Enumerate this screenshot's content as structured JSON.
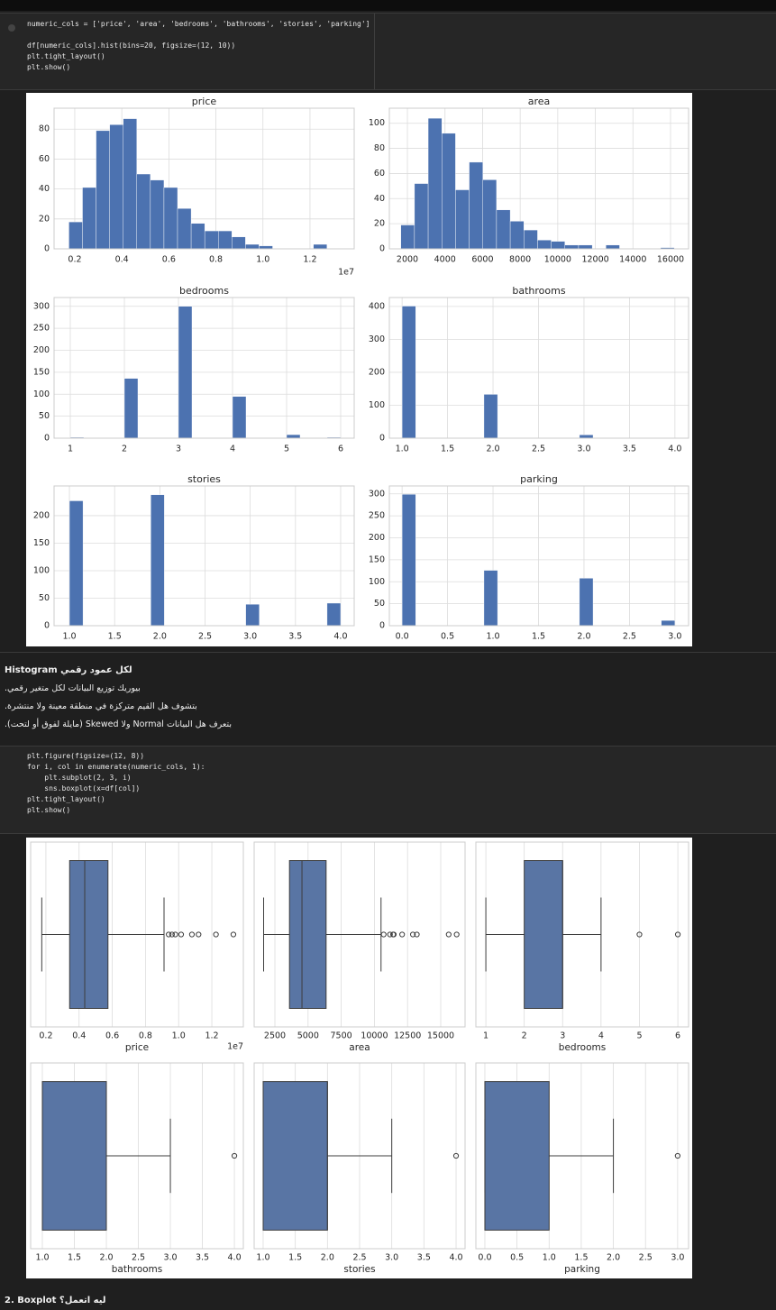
{
  "code_cells": [
    {
      "lines": [
        "numeric_cols = ['price', 'area', 'bedrooms', 'bathrooms', 'stories', 'parking']",
        "df[numeric_cols].hist(bins=20, figsize=(12, 10))",
        "plt.tight_layout()",
        "plt.show()"
      ]
    },
    {
      "lines": [
        "plt.figure(figsize=(12, 8))",
        "for i, col in enumerate(numeric_cols, 1):",
        "    plt.subplot(2, 3, i)",
        "    sns.boxplot(x=df[col])",
        "plt.tight_layout()",
        "plt.show()"
      ]
    }
  ],
  "markdown": {
    "lines": [
      "لكل عمود رقمي Histogram",
      "بيوريك توزيع البيانات لكل متغير رقمي.",
      "بتشوف هل القيم متركزة في منطقة معينة ولا منتشرة.",
      "بتعرف هل البيانات Normal ولا Skewed (مايلة لفوق أو لتحت)."
    ]
  },
  "next_heading": "2. Boxplot ليه اتعمل؟",
  "chart_data": [
    {
      "type": "histogram",
      "title": "price",
      "color": "#4c72b0",
      "grid": true,
      "x_offset_label": "1e7",
      "bins": [
        0.175,
        0.23275,
        0.2905,
        0.34825,
        0.406,
        0.46375,
        0.5215,
        0.57925,
        0.637,
        0.69475,
        0.7525,
        0.81025,
        0.868,
        0.92575,
        0.9835,
        1.04125,
        1.099,
        1.15675,
        1.2145,
        1.27225,
        1.33
      ],
      "values": [
        18,
        41,
        79,
        83,
        87,
        50,
        46,
        41,
        27,
        17,
        12,
        12,
        8,
        3,
        2,
        0,
        0,
        0,
        3,
        0
      ],
      "xlim": [
        0.112,
        1.388
      ],
      "xticks": [
        0.2,
        0.4,
        0.6,
        0.8,
        {
          "value": 1.0,
          "label": "1.0"
        },
        1.2
      ],
      "ylim": [
        0,
        94
      ],
      "yticks": [
        0,
        20,
        40,
        60,
        80
      ]
    },
    {
      "type": "histogram",
      "title": "area",
      "color": "#4c72b0",
      "grid": true,
      "bins": [
        1650,
        2377.5,
        3105,
        3832.5,
        4560,
        5287.5,
        6015,
        6742.5,
        7470,
        8197.5,
        8925,
        9652.5,
        10380,
        11107.5,
        11835,
        12562.5,
        13290,
        14017.5,
        14745,
        15472.5,
        16200
      ],
      "values": [
        19,
        52,
        104,
        92,
        47,
        69,
        55,
        31,
        22,
        15,
        7,
        6,
        3,
        3,
        0,
        3,
        0,
        0,
        0,
        1
      ],
      "xlim": [
        1040,
        16960
      ],
      "xticks": [
        2000,
        4000,
        6000,
        8000,
        10000,
        12000,
        14000,
        16000
      ],
      "ylim": [
        0,
        112
      ],
      "yticks": [
        0,
        20,
        40,
        60,
        80,
        100
      ]
    },
    {
      "type": "histogram",
      "title": "bedrooms",
      "color": "#4c72b0",
      "grid": true,
      "bins": [
        1,
        1.25,
        1.5,
        1.75,
        2,
        2.25,
        2.5,
        2.75,
        3,
        3.25,
        3.5,
        3.75,
        4,
        4.25,
        4.5,
        4.75,
        5,
        5.25,
        5.5,
        5.75,
        6
      ],
      "values": [
        2,
        0,
        0,
        0,
        136,
        0,
        0,
        0,
        300,
        0,
        0,
        0,
        95,
        0,
        0,
        0,
        8,
        0,
        0,
        2
      ],
      "xlim": [
        0.7,
        6.25
      ],
      "xticks": [
        1,
        2,
        3,
        4,
        5,
        6
      ],
      "ylim": [
        0,
        320
      ],
      "yticks": [
        0,
        50,
        100,
        150,
        200,
        250,
        300
      ]
    },
    {
      "type": "histogram",
      "title": "bathrooms",
      "color": "#4c72b0",
      "grid": true,
      "bins": [
        1,
        1.15,
        1.3,
        1.45,
        1.6,
        1.75,
        1.9,
        2.05,
        2.2,
        2.35,
        2.5,
        2.65,
        2.8,
        2.95,
        3.1,
        3.25,
        3.4,
        3.55,
        3.7,
        3.85,
        4
      ],
      "values": [
        401,
        0,
        0,
        0,
        0,
        0,
        133,
        0,
        0,
        0,
        0,
        0,
        0,
        10,
        0,
        0,
        0,
        0,
        0,
        1
      ],
      "xlim": [
        0.86,
        4.15
      ],
      "xticks": [
        {
          "value": 1,
          "label": "1.0"
        },
        1.5,
        {
          "value": 2,
          "label": "2.0"
        },
        2.5,
        {
          "value": 3,
          "label": "3.0"
        },
        3.5,
        {
          "value": 4,
          "label": "4.0"
        }
      ],
      "ylim": [
        0,
        427
      ],
      "yticks": [
        0,
        100,
        200,
        300,
        400
      ]
    },
    {
      "type": "histogram",
      "title": "stories",
      "color": "#4c72b0",
      "grid": true,
      "bins": [
        1,
        1.15,
        1.3,
        1.45,
        1.6,
        1.75,
        1.9,
        2.05,
        2.2,
        2.35,
        2.5,
        2.65,
        2.8,
        2.95,
        3.1,
        3.25,
        3.4,
        3.55,
        3.7,
        3.85,
        4
      ],
      "values": [
        227,
        0,
        0,
        0,
        0,
        0,
        238,
        0,
        0,
        0,
        0,
        0,
        0,
        39,
        0,
        0,
        0,
        0,
        0,
        41
      ],
      "xlim": [
        0.83,
        4.15
      ],
      "xticks": [
        {
          "value": 1,
          "label": "1.0"
        },
        1.5,
        {
          "value": 2,
          "label": "2.0"
        },
        2.5,
        {
          "value": 3,
          "label": "3.0"
        },
        3.5,
        {
          "value": 4,
          "label": "4.0"
        }
      ],
      "ylim": [
        0,
        254
      ],
      "yticks": [
        0,
        50,
        100,
        150,
        200
      ]
    },
    {
      "type": "histogram",
      "title": "parking",
      "color": "#4c72b0",
      "grid": true,
      "bins": [
        0,
        0.15,
        0.3,
        0.45,
        0.6,
        0.75,
        0.9,
        1.05,
        1.2,
        1.35,
        1.5,
        1.65,
        1.8,
        1.95,
        2.1,
        2.25,
        2.4,
        2.55,
        2.7,
        2.85,
        3
      ],
      "values": [
        299,
        0,
        0,
        0,
        0,
        0,
        126,
        0,
        0,
        0,
        0,
        0,
        0,
        108,
        0,
        0,
        0,
        0,
        0,
        12
      ],
      "xlim": [
        -0.14,
        3.15
      ],
      "xticks": [
        {
          "value": 0,
          "label": "0.0"
        },
        0.5,
        {
          "value": 1,
          "label": "1.0"
        },
        1.5,
        {
          "value": 2,
          "label": "2.0"
        },
        2.5,
        {
          "value": 3,
          "label": "3.0"
        }
      ],
      "ylim": [
        0,
        318
      ],
      "yticks": [
        0,
        50,
        100,
        150,
        200,
        250,
        300
      ]
    },
    {
      "type": "box",
      "xlabel": "price",
      "color": "#5975a4",
      "grid": true,
      "x_offset_label": "1e7",
      "whislo": 0.175,
      "q1": 0.343,
      "median": 0.434,
      "q3": 0.574,
      "whishi": 0.912,
      "fliers": [
        0.94,
        0.96,
        0.98,
        1.015,
        1.08,
        1.12,
        1.225,
        1.33
      ],
      "xlim": [
        0.108,
        1.39
      ],
      "xticks": [
        0.2,
        0.4,
        0.6,
        0.8,
        {
          "value": 1.0,
          "label": "1.0"
        },
        1.2
      ]
    },
    {
      "type": "box",
      "xlabel": "area",
      "color": "#5975a4",
      "grid": true,
      "whislo": 1650,
      "q1": 3600,
      "median": 4540,
      "q3": 6360,
      "whishi": 10500,
      "fliers": [
        10700,
        11175,
        11410,
        11460,
        12090,
        12900,
        13200,
        15600,
        16200
      ],
      "xlim": [
        937,
        16834
      ],
      "xticks": [
        2500,
        5000,
        7500,
        10000,
        12500,
        15000
      ]
    },
    {
      "type": "box",
      "xlabel": "bedrooms",
      "color": "#5975a4",
      "grid": true,
      "whislo": 1,
      "q1": 2,
      "median": 3,
      "q3": 3,
      "whishi": 4,
      "fliers": [
        5,
        6
      ],
      "xlim": [
        0.74,
        6.28
      ],
      "xticks": [
        1,
        2,
        3,
        4,
        5,
        6
      ]
    },
    {
      "type": "box",
      "xlabel": "bathrooms",
      "color": "#5975a4",
      "grid": true,
      "whislo": 1,
      "q1": 1,
      "median": 1,
      "q3": 2,
      "whishi": 3,
      "fliers": [
        4
      ],
      "xlim": [
        0.817,
        4.14
      ],
      "xticks": [
        {
          "value": 1,
          "label": "1.0"
        },
        1.5,
        {
          "value": 2,
          "label": "2.0"
        },
        2.5,
        {
          "value": 3,
          "label": "3.0"
        },
        3.5,
        {
          "value": 4,
          "label": "4.0"
        }
      ]
    },
    {
      "type": "box",
      "xlabel": "stories",
      "color": "#5975a4",
      "grid": true,
      "whislo": 1,
      "q1": 1,
      "median": 2,
      "q3": 2,
      "whishi": 3,
      "fliers": [
        4
      ],
      "xlim": [
        0.86,
        4.14
      ],
      "xticks": [
        {
          "value": 1,
          "label": "1.0"
        },
        1.5,
        {
          "value": 2,
          "label": "2.0"
        },
        2.5,
        {
          "value": 3,
          "label": "3.0"
        },
        3.5,
        {
          "value": 4,
          "label": "4.0"
        }
      ]
    },
    {
      "type": "box",
      "xlabel": "parking",
      "color": "#5975a4",
      "grid": true,
      "whislo": 0,
      "q1": 0,
      "median": 0,
      "q3": 1,
      "whishi": 2,
      "fliers": [
        3
      ],
      "xlim": [
        -0.14,
        3.17
      ],
      "xticks": [
        {
          "value": 0,
          "label": "0.0"
        },
        0.5,
        {
          "value": 1,
          "label": "1.0"
        },
        1.5,
        {
          "value": 2,
          "label": "2.0"
        },
        2.5,
        {
          "value": 3,
          "label": "3.0"
        }
      ]
    }
  ]
}
